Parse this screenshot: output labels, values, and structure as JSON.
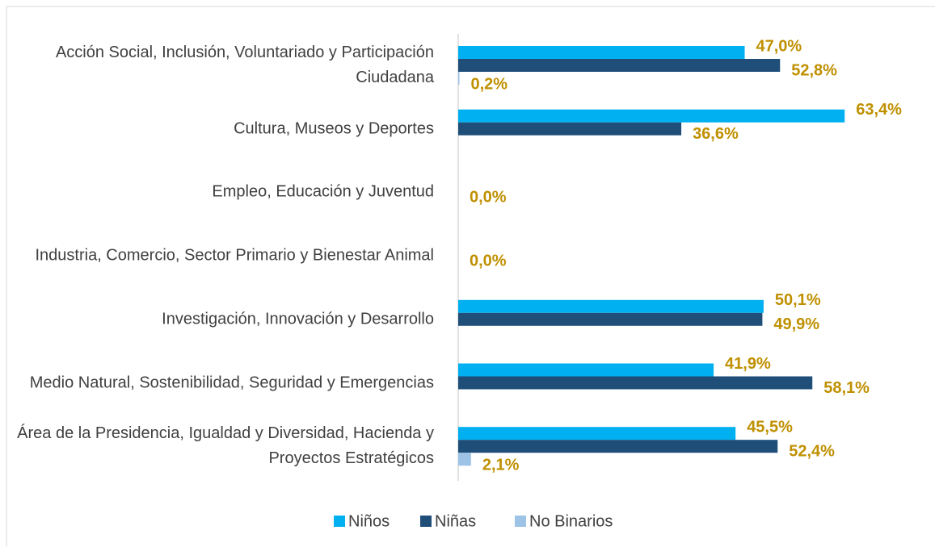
{
  "chart_data": {
    "type": "hbar",
    "categories": [
      "Acción Social, Inclusión, Voluntariado y Participación Ciudadana",
      "Cultura, Museos y Deportes",
      "Empleo, Educación y Juventud",
      "Industria, Comercio, Sector Primario y Bienestar Animal",
      "Investigación, Innovación y Desarrollo",
      "Medio Natural, Sostenibilidad, Seguridad y Emergencias",
      "Área de la Presidencia, Igualdad y Diversidad, Hacienda y Proyectos Estratégicos"
    ],
    "series": [
      {
        "name": "Niños",
        "color": "#00b0f0",
        "values": [
          47.0,
          63.4,
          null,
          null,
          50.1,
          41.9,
          45.5
        ],
        "value_labels": [
          "47,0%",
          "63,4%",
          null,
          null,
          "50,1%",
          "41,9%",
          "45,5%"
        ]
      },
      {
        "name": "Niñas",
        "color": "#1f4e79",
        "values": [
          52.8,
          36.6,
          0,
          0,
          49.9,
          58.1,
          52.4
        ],
        "value_labels": [
          "52,8%",
          "36,6%",
          "0,0%",
          "0,0%",
          "49,9%",
          "58,1%",
          "52,4%"
        ]
      },
      {
        "name": "No Binarios",
        "color": "#9dc3e6",
        "values": [
          0.2,
          null,
          null,
          null,
          null,
          null,
          2.1
        ],
        "value_labels": [
          "0,2%",
          null,
          null,
          null,
          null,
          null,
          "2,1%"
        ]
      }
    ],
    "xlim": [
      0,
      70
    ],
    "label_color": "#bf9000"
  }
}
